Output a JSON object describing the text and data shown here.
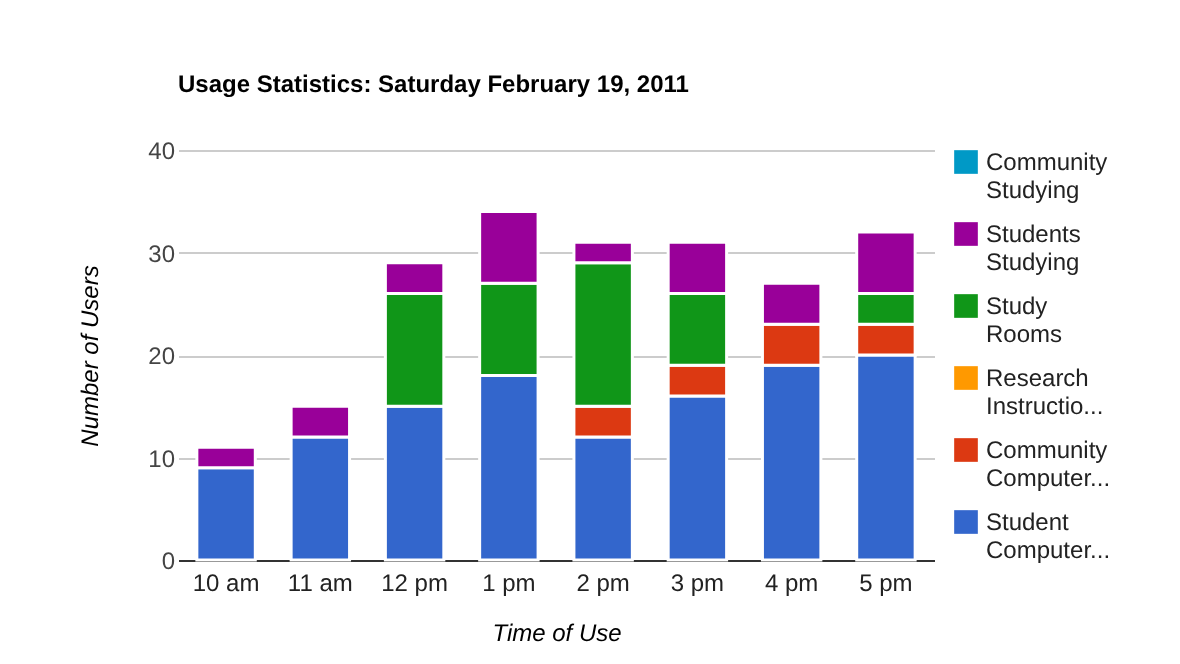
{
  "chart_data": {
    "type": "bar",
    "title": "Usage Statistics: Saturday February 19, 2011",
    "xlabel": "Time of Use",
    "ylabel": "Number of Users",
    "categories": [
      "10 am",
      "11 am",
      "12 pm",
      "1 pm",
      "2 pm",
      "3 pm",
      "4 pm",
      "5 pm"
    ],
    "stacked": true,
    "series": [
      {
        "name": "Student Computer...",
        "color": "#3366cc",
        "values": [
          9,
          12,
          15,
          18,
          12,
          16,
          19,
          20
        ]
      },
      {
        "name": "Community Computer...",
        "color": "#dc3912",
        "values": [
          0,
          0,
          0,
          0,
          3,
          3,
          4,
          3
        ]
      },
      {
        "name": "Research Instructio...",
        "color": "#ff9900",
        "values": [
          0,
          0,
          0,
          0,
          0,
          0,
          0,
          0
        ]
      },
      {
        "name": "Study Rooms",
        "color": "#109618",
        "values": [
          0,
          0,
          11,
          9,
          14,
          7,
          0,
          3
        ]
      },
      {
        "name": "Students Studying",
        "color": "#990099",
        "values": [
          2,
          3,
          3,
          7,
          2,
          5,
          4,
          6
        ]
      },
      {
        "name": "Community Studying",
        "color": "#0099c6",
        "values": [
          0,
          0,
          0,
          0,
          0,
          0,
          0,
          0
        ]
      }
    ],
    "ylim": [
      0,
      40
    ],
    "yticks": [
      0,
      10,
      20,
      30,
      40
    ],
    "grid": "y",
    "legend": "right"
  }
}
